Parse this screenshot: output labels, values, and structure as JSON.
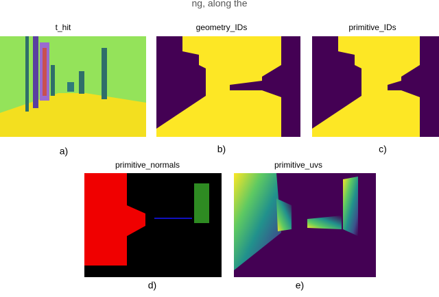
{
  "header": {
    "text": "ng, along the"
  },
  "panels": [
    {
      "title": "t_hit",
      "caption": "a)"
    },
    {
      "title": "geometry_IDs",
      "caption": "b)"
    },
    {
      "title": "primitive_IDs",
      "caption": "c)"
    },
    {
      "title": "primitive_normals",
      "caption": "d)"
    },
    {
      "title": "primitive_uvs",
      "caption": "e)"
    }
  ]
}
